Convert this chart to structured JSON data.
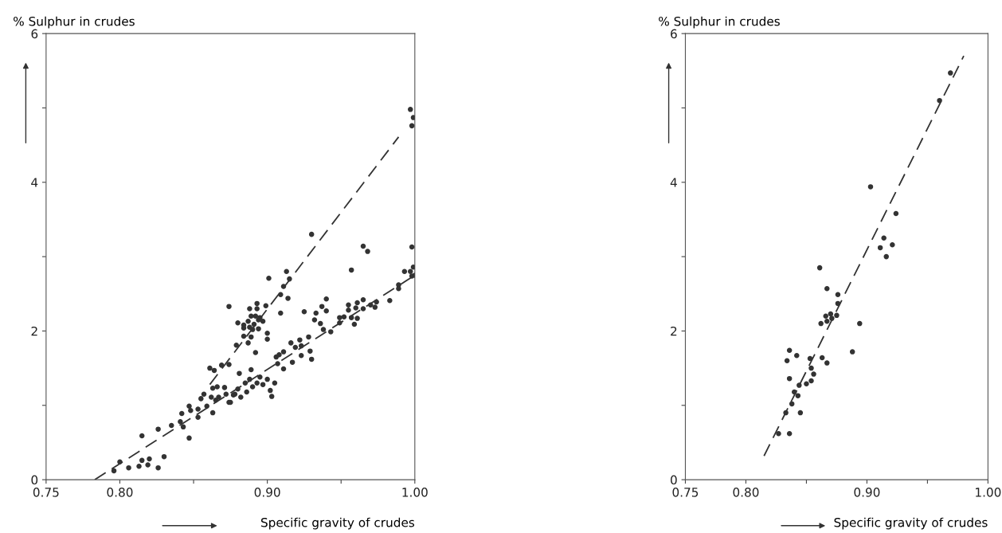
{
  "chart_data": [
    {
      "type": "scatter",
      "xlabel": "Specific gravity of crudes",
      "ylabel": "% Sulphur in crudes",
      "xlim": [
        0.75,
        1.0
      ],
      "ylim": [
        0,
        6
      ],
      "xticks": [
        {
          "value": 0.75,
          "label": "0.75"
        },
        {
          "value": 0.8,
          "label": "0.80"
        },
        {
          "value": 0.85,
          "label": null
        },
        {
          "value": 0.9,
          "label": "0.90"
        },
        {
          "value": 0.95,
          "label": null
        },
        {
          "value": 1.0,
          "label": "1.00"
        }
      ],
      "yticks": [
        0,
        {
          "value": 1,
          "label": null
        },
        2,
        {
          "value": 3,
          "label": null
        },
        4,
        {
          "value": 5,
          "label": null
        },
        6
      ],
      "grid": false,
      "series": [
        {
          "marker": "circle",
          "color": "#333333",
          "x": [
            0.796,
            0.8,
            0.806,
            0.813,
            0.815,
            0.815,
            0.819,
            0.82,
            0.826,
            0.826,
            0.83,
            0.835,
            0.841,
            0.842,
            0.843,
            0.847,
            0.847,
            0.848,
            0.853,
            0.853,
            0.855,
            0.857,
            0.859,
            0.861,
            0.863,
            0.863,
            0.864,
            0.862,
            0.865,
            0.866,
            0.867,
            0.869,
            0.871,
            0.872,
            0.874,
            0.874,
            0.874,
            0.875,
            0.877,
            0.879,
            0.88,
            0.881,
            0.882,
            0.997,
            0.998,
            0.999,
            0.93,
            0.965,
            0.968,
            0.998,
            0.957,
            0.901,
            0.913,
            0.915,
            0.911,
            0.909,
            0.914,
            0.899,
            0.888,
            0.893,
            0.893,
            0.889,
            0.892,
            0.895,
            0.897,
            0.894,
            0.891,
            0.887,
            0.884,
            0.884,
            0.888,
            0.89,
            0.894,
            0.9,
            0.9,
            0.884,
            0.889,
            0.887,
            0.892,
            0.909,
            0.925,
            0.94,
            0.937,
            0.94,
            0.933,
            0.932,
            0.936,
            0.938,
            0.943,
            0.949,
            0.952,
            0.955,
            0.961,
            0.965,
            0.955,
            0.96,
            0.965,
            0.949,
            0.957,
            0.961,
            0.959,
            0.97,
            0.974,
            0.973,
            0.983,
            0.989,
            0.989,
            0.993,
            0.997,
            0.999,
            0.998,
            1.0,
            0.889,
            0.906,
            0.908,
            0.911,
            0.907,
            0.911,
            0.916,
            0.919,
            0.922,
            0.923,
            0.923,
            0.917,
            0.928,
            0.929,
            0.93,
            0.885,
            0.888,
            0.89,
            0.893,
            0.895,
            0.897,
            0.9,
            0.902,
            0.903,
            0.905,
            0.88,
            0.878,
            0.886
          ],
          "values": [
            0.12,
            0.24,
            0.16,
            0.18,
            0.59,
            0.26,
            0.2,
            0.28,
            0.68,
            0.16,
            0.31,
            0.73,
            0.78,
            0.89,
            0.71,
            0.56,
            0.99,
            0.93,
            0.84,
            0.95,
            1.09,
            1.15,
            0.99,
            1.5,
            1.23,
            0.9,
            1.47,
            1.11,
            1.07,
            1.25,
            1.11,
            1.54,
            1.24,
            1.15,
            1.55,
            2.33,
            1.04,
            1.04,
            1.14,
            1.81,
            2.11,
            1.43,
            1.11,
            4.98,
            4.76,
            4.87,
            3.3,
            3.14,
            3.07,
            3.13,
            2.82,
            2.71,
            2.8,
            2.7,
            2.6,
            2.49,
            2.44,
            2.34,
            2.3,
            2.37,
            2.3,
            2.2,
            2.2,
            2.18,
            2.13,
            2.15,
            2.09,
            2.13,
            2.08,
            2.04,
            2.05,
            2.02,
            2.03,
            1.97,
            1.89,
            1.93,
            1.92,
            1.84,
            1.71,
            2.24,
            2.26,
            2.43,
            2.33,
            2.27,
            2.24,
            2.15,
            2.1,
            2.02,
            1.99,
            2.18,
            2.19,
            2.35,
            2.38,
            2.42,
            2.28,
            2.31,
            2.3,
            2.11,
            2.18,
            2.17,
            2.09,
            2.35,
            2.39,
            2.32,
            2.41,
            2.62,
            2.57,
            2.8,
            2.8,
            2.86,
            2.74,
            2.75,
            1.48,
            1.65,
            1.68,
            1.72,
            1.56,
            1.49,
            1.84,
            1.78,
            1.88,
            1.8,
            1.67,
            1.58,
            1.92,
            1.73,
            1.62,
            1.3,
            1.35,
            1.25,
            1.3,
            1.38,
            1.28,
            1.35,
            1.2,
            1.12,
            1.3,
            1.22,
            1.15,
            1.18
          ]
        },
        {
          "type": "line",
          "marker": "none",
          "color": "#333333",
          "line_style": "dashed",
          "x": [
            0.861,
            0.989
          ],
          "values": [
            1.28,
            4.61
          ]
        },
        {
          "type": "line",
          "marker": "none",
          "color": "#333333",
          "line_style": "dashed",
          "x": [
            0.783,
            1.0
          ],
          "values": [
            0,
            2.75
          ]
        }
      ]
    },
    {
      "type": "scatter",
      "xlabel": "Specific gravity of crudes",
      "ylabel": "% Sulphur in crudes",
      "xlim": [
        0.75,
        1.0
      ],
      "ylim": [
        0,
        6
      ],
      "xticks": [
        {
          "value": 0.75,
          "label": "0.75"
        },
        {
          "value": 0.8,
          "label": "0.80"
        },
        {
          "value": 0.85,
          "label": null
        },
        {
          "value": 0.9,
          "label": "0.90"
        },
        {
          "value": 0.95,
          "label": null
        },
        {
          "value": 1.0,
          "label": "1.00"
        }
      ],
      "yticks": [
        0,
        {
          "value": 1,
          "label": null
        },
        2,
        {
          "value": 3,
          "label": null
        },
        4,
        {
          "value": 5,
          "label": null
        },
        6
      ],
      "grid": false,
      "series": [
        {
          "marker": "circle",
          "color": "#333333",
          "x": [
            0.969,
            0.96,
            0.903,
            0.924,
            0.914,
            0.911,
            0.921,
            0.916,
            0.861,
            0.867,
            0.876,
            0.876,
            0.875,
            0.87,
            0.871,
            0.866,
            0.867,
            0.862,
            0.894,
            0.888,
            0.836,
            0.842,
            0.834,
            0.853,
            0.863,
            0.867,
            0.854,
            0.856,
            0.836,
            0.854,
            0.85,
            0.844,
            0.84,
            0.843,
            0.838,
            0.833,
            0.845,
            0.827,
            0.836
          ],
          "values": [
            5.47,
            5.1,
            3.94,
            3.58,
            3.25,
            3.12,
            3.16,
            3.0,
            2.85,
            2.57,
            2.49,
            2.37,
            2.21,
            2.23,
            2.17,
            2.2,
            2.13,
            2.1,
            2.1,
            1.72,
            1.74,
            1.67,
            1.6,
            1.63,
            1.64,
            1.57,
            1.5,
            1.42,
            1.36,
            1.33,
            1.29,
            1.27,
            1.18,
            1.13,
            1.02,
            0.9,
            0.9,
            0.62,
            0.62
          ]
        },
        {
          "type": "line",
          "marker": "none",
          "color": "#333333",
          "line_style": "dashed",
          "x": [
            0.815,
            0.98
          ],
          "values": [
            0.32,
            5.7
          ]
        }
      ]
    }
  ]
}
